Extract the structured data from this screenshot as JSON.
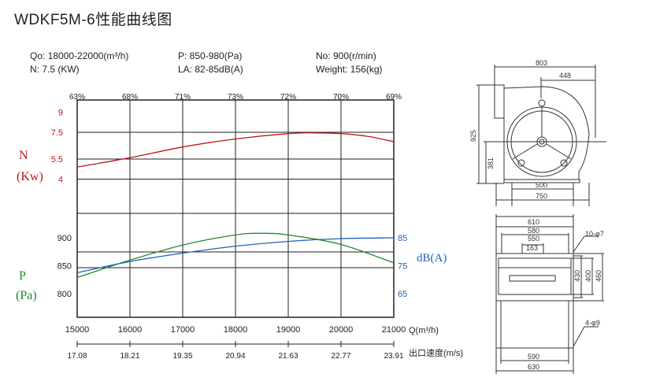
{
  "title": "WDKF5M-6性能曲线图",
  "specs": {
    "flow": "Qo: 18000-22000(m³/h)",
    "power": "N: 7.5 (KW)",
    "pressure": "P: 850-980(Pa)",
    "noise": "LA: 82-85dB(A)",
    "speed": "No: 900(r/min)",
    "weight": "Weight: 156(kg)"
  },
  "axis_labels": {
    "n_axis": "N",
    "n_unit": "(Kw)",
    "p_axis": "P",
    "p_unit": "(Pa)",
    "db_axis": "dB(A)",
    "q_axis": "Q(m³/h)",
    "velocity_axis": "出口速度(m/s)"
  },
  "colors": {
    "power": "#c0141c",
    "pressure": "#1f8a2e",
    "noise": "#1f62b8",
    "frame": "#222222"
  },
  "chart_data": {
    "type": "line",
    "title": "WDKF5M-6性能曲线图",
    "x": [
      15000,
      16000,
      17000,
      18000,
      19000,
      20000,
      21000
    ],
    "x_tick_labels": [
      "15000",
      "16000",
      "17000",
      "18000",
      "19000",
      "20000",
      "21000"
    ],
    "xlabel": "Q(m³/h)",
    "xlim": [
      15000,
      21000
    ],
    "efficiency_ticks": [
      "63%",
      "68%",
      "71%",
      "73%",
      "72%",
      "70%",
      "69%"
    ],
    "velocity_ticks": [
      "17.08",
      "18.21",
      "19.35",
      "20.94",
      "21.63",
      "22.77",
      "23.91"
    ],
    "power_ticks": [
      "9",
      "7.5",
      "5.5",
      "4"
    ],
    "pressure_ticks": [
      "900",
      "850",
      "800"
    ],
    "noise_ticks": [
      "85",
      "75",
      "65"
    ],
    "series": [
      {
        "name": "N",
        "axis": "power",
        "x": [
          15000,
          16000,
          17000,
          18000,
          19000,
          19500,
          20000,
          20500,
          21000
        ],
        "values": [
          4.9,
          5.6,
          6.4,
          7.0,
          7.4,
          7.45,
          7.4,
          7.2,
          6.8
        ]
      },
      {
        "name": "P",
        "axis": "pressure",
        "x": [
          15000,
          16000,
          17000,
          18000,
          18500,
          19000,
          20000,
          21000
        ],
        "values": [
          829,
          860,
          887,
          905,
          908,
          905,
          888,
          855
        ]
      },
      {
        "name": "dB(A)",
        "axis": "noise",
        "x": [
          15000,
          16000,
          17000,
          18000,
          19000,
          20000,
          21000
        ],
        "values": [
          72.5,
          76.5,
          79.5,
          82.0,
          83.7,
          84.7,
          85.0
        ]
      }
    ]
  },
  "drawings": {
    "side": {
      "width": "803",
      "offset": "448",
      "height": "925",
      "center": "381",
      "base_inner": "500",
      "base_outer": "750"
    },
    "front": {
      "w1": "610",
      "w2": "580",
      "w3": "550",
      "w4": "163",
      "holes_top": "10-φ7",
      "h1": "430",
      "h2": "400",
      "h3": "460",
      "holes_bottom": "4-φ9",
      "b1": "590",
      "b2": "630"
    }
  }
}
